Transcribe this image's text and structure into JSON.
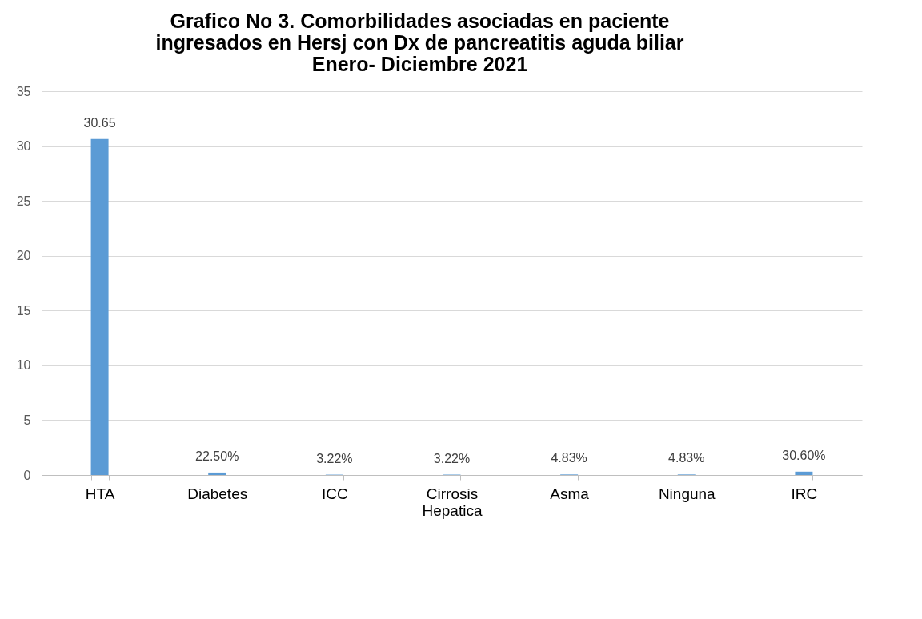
{
  "chart_data": {
    "type": "bar",
    "title": "Grafico No 3. Comorbilidades asociadas en paciente\ningresados en Hersj con Dx de pancreatitis aguda biliar\nEnero- Diciembre 2021",
    "categories": [
      "HTA",
      "Diabetes",
      "ICC",
      "Cirrosis\nHepatica",
      "Asma",
      "Ninguna",
      "IRC"
    ],
    "values": [
      30.65,
      0.225,
      0.0322,
      0.0322,
      0.0483,
      0.0483,
      0.306
    ],
    "value_labels": [
      "30.65",
      "22.50%",
      "3.22%",
      "3.22%",
      "4.83%",
      "4.83%",
      "30.60%"
    ],
    "color": "#5b9bd5",
    "ylim": [
      0,
      35
    ],
    "yticks": [
      0,
      5,
      10,
      15,
      20,
      25,
      30,
      35
    ],
    "grid": "y"
  }
}
